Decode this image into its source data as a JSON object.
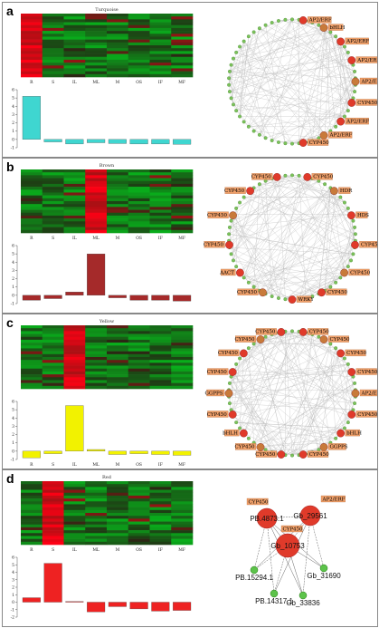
{
  "panels": [
    {
      "label": "a",
      "module": "Turquoise",
      "color": "#3fd6d0",
      "peak": 0,
      "columns": [
        "R",
        "S",
        "IL",
        "ML",
        "M",
        "OS",
        "IF",
        "MF"
      ],
      "bars": [
        5.2,
        -0.3,
        -0.55,
        -0.4,
        -0.5,
        -0.55,
        -0.55,
        -0.6
      ],
      "ylim": [
        -1,
        6
      ],
      "nodes": [
        "AP2/ERF",
        "bHLH",
        "AP2/ERF",
        "AP2/ERF",
        "AP2/ERF",
        "CYP450",
        "AP2/ERF",
        "AP2/ERF",
        "CYP450"
      ],
      "network": "circle"
    },
    {
      "label": "b",
      "module": "Brown",
      "color": "#a52a2a",
      "peak": 3,
      "columns": [
        "R",
        "S",
        "IL",
        "ML",
        "M",
        "OS",
        "IF",
        "MF"
      ],
      "bars": [
        -0.6,
        -0.4,
        0.4,
        5.0,
        -0.3,
        -0.6,
        -0.6,
        -0.7
      ],
      "ylim": [
        -1,
        6
      ],
      "nodes": [
        "CYP450",
        "HDR",
        "HDS",
        "CYP450",
        "CYP450",
        "CYP450",
        "WRKY",
        "CYP450",
        "AACT",
        "CYP450",
        "CYP450",
        "CYP450",
        "CYP450"
      ],
      "network": "circle"
    },
    {
      "label": "c",
      "module": "Yellow",
      "color": "#f2f200",
      "peak": 2,
      "columns": [
        "R",
        "S",
        "IL",
        "ML",
        "M",
        "OS",
        "IF",
        "MF"
      ],
      "bars": [
        -0.8,
        -0.3,
        5.5,
        0.2,
        -0.4,
        -0.3,
        -0.4,
        -0.5
      ],
      "ylim": [
        -1,
        6
      ],
      "nodes": [
        "CYP450",
        "CYP450",
        "CYP450",
        "CYP450",
        "AP2/ERF",
        "CYP450",
        "bHLH",
        "GGPPS",
        "CYP450",
        "CYP450",
        "CYP450",
        "bHLH",
        "CYP450",
        "GGPPS",
        "CYP450",
        "CYP450",
        "CYP450",
        "CYP450"
      ],
      "network": "circle"
    },
    {
      "label": "d",
      "module": "Red",
      "color": "#ee2222",
      "peak": 1,
      "columns": [
        "R",
        "S",
        "IL",
        "ML",
        "M",
        "OS",
        "IF",
        "MF"
      ],
      "bars": [
        0.6,
        5.2,
        0.1,
        -1.3,
        -0.6,
        -0.9,
        -1.2,
        -1.1
      ],
      "ylim": [
        -2,
        6
      ],
      "hubs": [
        "PB.4873.1",
        "Gb_29561",
        "Gb_10753",
        "PB.15294.1",
        "Gb_31690",
        "PB.14317.1",
        "Gb_33836"
      ],
      "hubtags": [
        "CYP450",
        "AP2/ERF",
        "CYP450"
      ],
      "network": "hub"
    }
  ]
}
